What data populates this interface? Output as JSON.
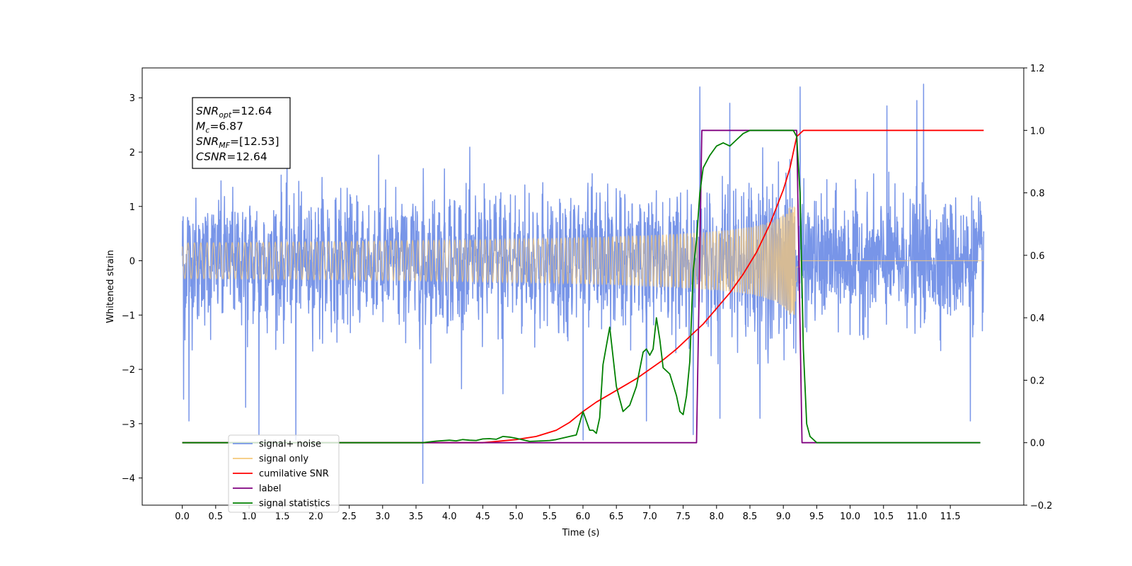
{
  "chart_data": {
    "type": "line",
    "xlabel": "Time (s)",
    "ylabel_left": "Whitened strain",
    "ylabel_right": "",
    "xlim": [
      -0.6,
      12.6
    ],
    "ylim_left": [
      -4.5,
      3.55
    ],
    "ylim_right": [
      -0.2,
      1.2
    ],
    "x_ticks": [
      "0.0",
      "0.5",
      "1.0",
      "1.5",
      "2.0",
      "2.5",
      "3.0",
      "3.5",
      "4.0",
      "4.5",
      "5.0",
      "5.5",
      "6.0",
      "6.5",
      "7.0",
      "7.5",
      "8.0",
      "8.5",
      "9.0",
      "9.5",
      "10.0",
      "10.5",
      "11.0",
      "11.5"
    ],
    "y_ticks_left": [
      3,
      2,
      1,
      0,
      -1,
      -2,
      -3,
      -4
    ],
    "y_ticks_right": [
      1.2,
      1.0,
      0.8,
      0.6,
      0.4,
      0.2,
      0.0,
      -0.2
    ],
    "y_ticks_left_labels": [
      "3",
      "2",
      "1",
      "0",
      "−1",
      "−2",
      "−3",
      "−4"
    ],
    "y_ticks_right_labels": [
      "1.2",
      "1.0",
      "0.8",
      "0.6",
      "0.4",
      "0.2",
      "0.0",
      "−0.2"
    ],
    "annotation": {
      "lines": [
        {
          "sym": "SNR",
          "sub": "opt",
          "val": "=12.64"
        },
        {
          "sym": "M",
          "sub": "c",
          "val": "=6.87"
        },
        {
          "sym": "SNR",
          "sub": "MF",
          "val": "=[12.53]"
        },
        {
          "sym": "CSNR",
          "sub": "",
          "val": "=12.64"
        }
      ]
    },
    "legend": {
      "placement": "lower-left",
      "entries": [
        {
          "label": "signal+ noise",
          "color": "#7895e8"
        },
        {
          "label": "signal only",
          "color": "#f5c87a"
        },
        {
          "label": "cumilative SNR",
          "color": "#ff0000"
        },
        {
          "label": "label",
          "color": "#800080"
        },
        {
          "label": "signal statistics",
          "color": "#008000"
        }
      ]
    },
    "series": [
      {
        "name": "signal+ noise",
        "axis": "left",
        "color": "#7895e8",
        "description_values": {
          "noise_std": 0.55,
          "t_start": 0.0,
          "t_end": 12.0,
          "max": 3.25,
          "min": -4.1
        },
        "spikes": [
          [
            0.02,
            -2.55
          ],
          [
            0.1,
            -2.95
          ],
          [
            0.95,
            -2.7
          ],
          [
            1.15,
            -3.2
          ],
          [
            1.7,
            -3.3
          ],
          [
            3.6,
            -4.1
          ],
          [
            4.8,
            -2.45
          ],
          [
            6.0,
            -3.3
          ],
          [
            6.95,
            -2.95
          ],
          [
            7.65,
            -3.2
          ],
          [
            7.75,
            3.2
          ],
          [
            8.05,
            -2.9
          ],
          [
            8.2,
            2.9
          ],
          [
            8.65,
            -2.9
          ],
          [
            9.25,
            3.2
          ],
          [
            10.55,
            2.85
          ],
          [
            11.0,
            2.95
          ],
          [
            11.1,
            3.25
          ],
          [
            11.8,
            -2.95
          ]
        ]
      },
      {
        "name": "signal only",
        "axis": "left",
        "color": "#f5c87a",
        "chirp": {
          "t_start": 0.0,
          "t_merge": 9.2,
          "amp_at_merge": 0.95
        }
      },
      {
        "name": "cumilative SNR",
        "axis": "right",
        "color": "#ff0000",
        "x": [
          0.0,
          4.0,
          4.5,
          5.0,
          5.3,
          5.6,
          5.8,
          6.0,
          6.2,
          6.4,
          6.6,
          6.8,
          7.0,
          7.2,
          7.4,
          7.6,
          7.8,
          8.0,
          8.2,
          8.4,
          8.6,
          8.8,
          9.0,
          9.1,
          9.15,
          9.2,
          9.3,
          9.6,
          10.0,
          11.0,
          12.0
        ],
        "values": [
          0.0,
          0.0,
          0.0,
          0.01,
          0.02,
          0.04,
          0.065,
          0.1,
          0.13,
          0.155,
          0.18,
          0.205,
          0.235,
          0.265,
          0.3,
          0.34,
          0.38,
          0.43,
          0.48,
          0.54,
          0.61,
          0.7,
          0.81,
          0.88,
          0.93,
          0.98,
          1.0,
          1.0,
          1.0,
          1.0,
          1.0
        ]
      },
      {
        "name": "label",
        "axis": "right",
        "color": "#800080",
        "x": [
          0.0,
          7.7,
          7.78,
          9.2,
          9.28,
          11.95
        ],
        "values": [
          0.0,
          0.0,
          1.0,
          1.0,
          0.0,
          0.0
        ]
      },
      {
        "name": "signal statistics",
        "axis": "right",
        "color": "#008000",
        "x": [
          0.0,
          3.6,
          3.8,
          4.0,
          4.1,
          4.2,
          4.3,
          4.4,
          4.5,
          4.6,
          4.7,
          4.8,
          4.9,
          5.0,
          5.2,
          5.4,
          5.5,
          5.6,
          5.8,
          5.9,
          6.0,
          6.05,
          6.1,
          6.15,
          6.2,
          6.25,
          6.3,
          6.4,
          6.5,
          6.6,
          6.7,
          6.8,
          6.9,
          6.95,
          7.0,
          7.05,
          7.1,
          7.15,
          7.2,
          7.3,
          7.4,
          7.45,
          7.5,
          7.55,
          7.6,
          7.65,
          7.7,
          7.75,
          7.8,
          7.9,
          8.0,
          8.1,
          8.2,
          8.3,
          8.4,
          8.5,
          8.6,
          8.8,
          9.0,
          9.1,
          9.15,
          9.2,
          9.25,
          9.3,
          9.35,
          9.4,
          9.5,
          9.7,
          10.0,
          11.0,
          11.95
        ],
        "values": [
          0.0,
          0.0,
          0.005,
          0.008,
          0.006,
          0.01,
          0.008,
          0.007,
          0.012,
          0.013,
          0.011,
          0.02,
          0.018,
          0.014,
          0.004,
          0.006,
          0.007,
          0.01,
          0.02,
          0.025,
          0.1,
          0.07,
          0.04,
          0.04,
          0.03,
          0.08,
          0.25,
          0.37,
          0.18,
          0.1,
          0.12,
          0.18,
          0.29,
          0.3,
          0.28,
          0.3,
          0.4,
          0.33,
          0.24,
          0.22,
          0.15,
          0.1,
          0.09,
          0.15,
          0.26,
          0.55,
          0.65,
          0.8,
          0.88,
          0.92,
          0.95,
          0.96,
          0.95,
          0.97,
          0.99,
          1.0,
          1.0,
          1.0,
          1.0,
          1.0,
          1.0,
          0.98,
          0.8,
          0.3,
          0.06,
          0.02,
          0.0,
          0.0,
          0.0,
          0.0,
          0.0
        ]
      }
    ]
  }
}
